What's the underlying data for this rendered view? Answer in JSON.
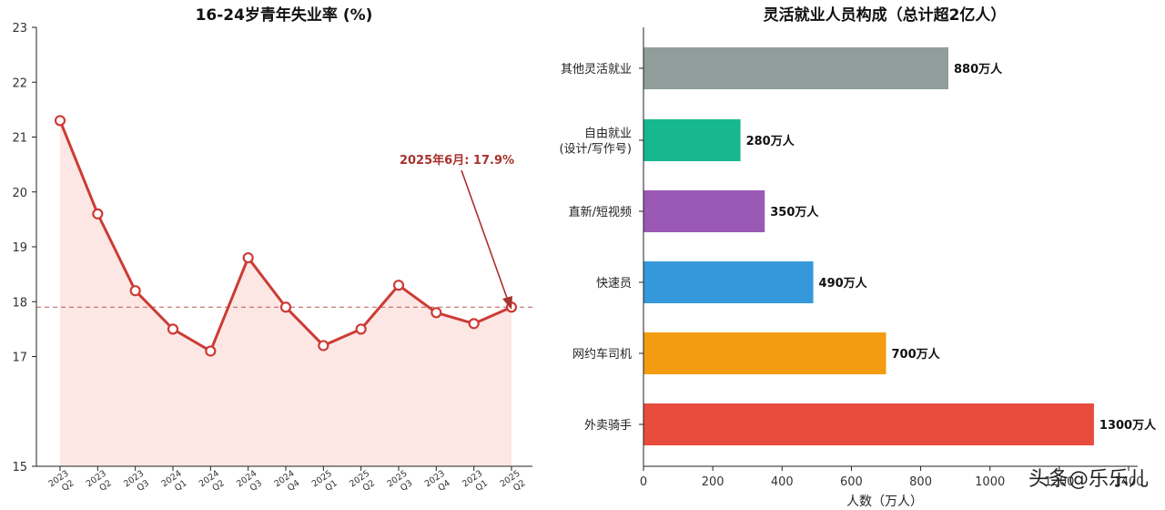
{
  "chart_data": [
    {
      "type": "line",
      "title": "16-24岁青年失业率 (%)",
      "x": [
        {
          "year": "2023",
          "q": "Q2"
        },
        {
          "year": "2023",
          "q": "Q2"
        },
        {
          "year": "2023",
          "q": "Q3"
        },
        {
          "year": "2024",
          "q": "Q1"
        },
        {
          "year": "2024",
          "q": "Q2"
        },
        {
          "year": "2024",
          "q": "Q3"
        },
        {
          "year": "2024",
          "q": "Q4"
        },
        {
          "year": "2025",
          "q": "Q1"
        },
        {
          "year": "2025",
          "q": "Q2"
        },
        {
          "year": "2025",
          "q": "Q3"
        },
        {
          "year": "2023",
          "q": "Q4"
        },
        {
          "year": "2023",
          "q": "Q1"
        },
        {
          "year": "2025",
          "q": "Q2"
        }
      ],
      "values": [
        21.3,
        19.6,
        18.2,
        17.5,
        17.1,
        18.8,
        17.9,
        17.2,
        17.5,
        18.3,
        17.8,
        17.6,
        17.9
      ],
      "yticks": [
        15,
        17,
        18,
        19,
        20,
        21,
        22,
        23
      ],
      "ylim": [
        15,
        23
      ],
      "reference_line": 17.9,
      "annotation": "2025年6月: 17.9%",
      "color": "#cc3b35",
      "fill_color": "#fbe3e1"
    },
    {
      "type": "bar",
      "orientation": "horizontal",
      "title": "灵活就业人员构成（总计超2亿人）",
      "categories": [
        [
          "其他灵活就业"
        ],
        [
          "自由就业",
          "(设计/写作号)"
        ],
        [
          "直新/短视频"
        ],
        [
          "快速员"
        ],
        [
          "网约车司机"
        ],
        [
          "外卖骑手"
        ]
      ],
      "values": [
        880,
        280,
        350,
        490,
        700,
        1300
      ],
      "value_labels": [
        "880万人",
        "280万人",
        "350万人",
        "490万人",
        "700万人",
        "1300万人"
      ],
      "colors": [
        "#8f9e9b",
        "#17b890",
        "#9b59b6",
        "#3498db",
        "#f39c12",
        "#e74c3c"
      ],
      "xticks": [
        "0",
        "200",
        "400",
        "600",
        "800",
        "1000",
        "1200",
        "1400"
      ],
      "xlim": [
        0,
        1400
      ],
      "xlabel": "人数（万人）"
    }
  ],
  "watermark": "头条@乐乐儿"
}
